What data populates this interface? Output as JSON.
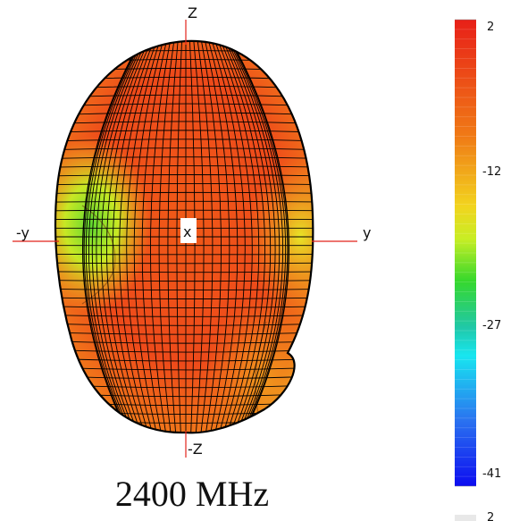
{
  "axes": {
    "z_pos": "Z",
    "z_neg": "-Z",
    "y_pos": "y",
    "y_neg": "-y",
    "x_center": "x"
  },
  "colorbar": {
    "labels": [
      "2",
      "-12",
      "-27",
      "-41"
    ],
    "footer_partial": "2",
    "colors": [
      "#e8221c",
      "#f06a14",
      "#f5c81c",
      "#e8f020",
      "#3ce02a",
      "#20c8a0",
      "#18e8f0",
      "#1e64f0",
      "#1010f0"
    ]
  },
  "pattern": {
    "main_color": "#f04d18",
    "grid_color": "#000000"
  },
  "caption": "2400 MHz"
}
